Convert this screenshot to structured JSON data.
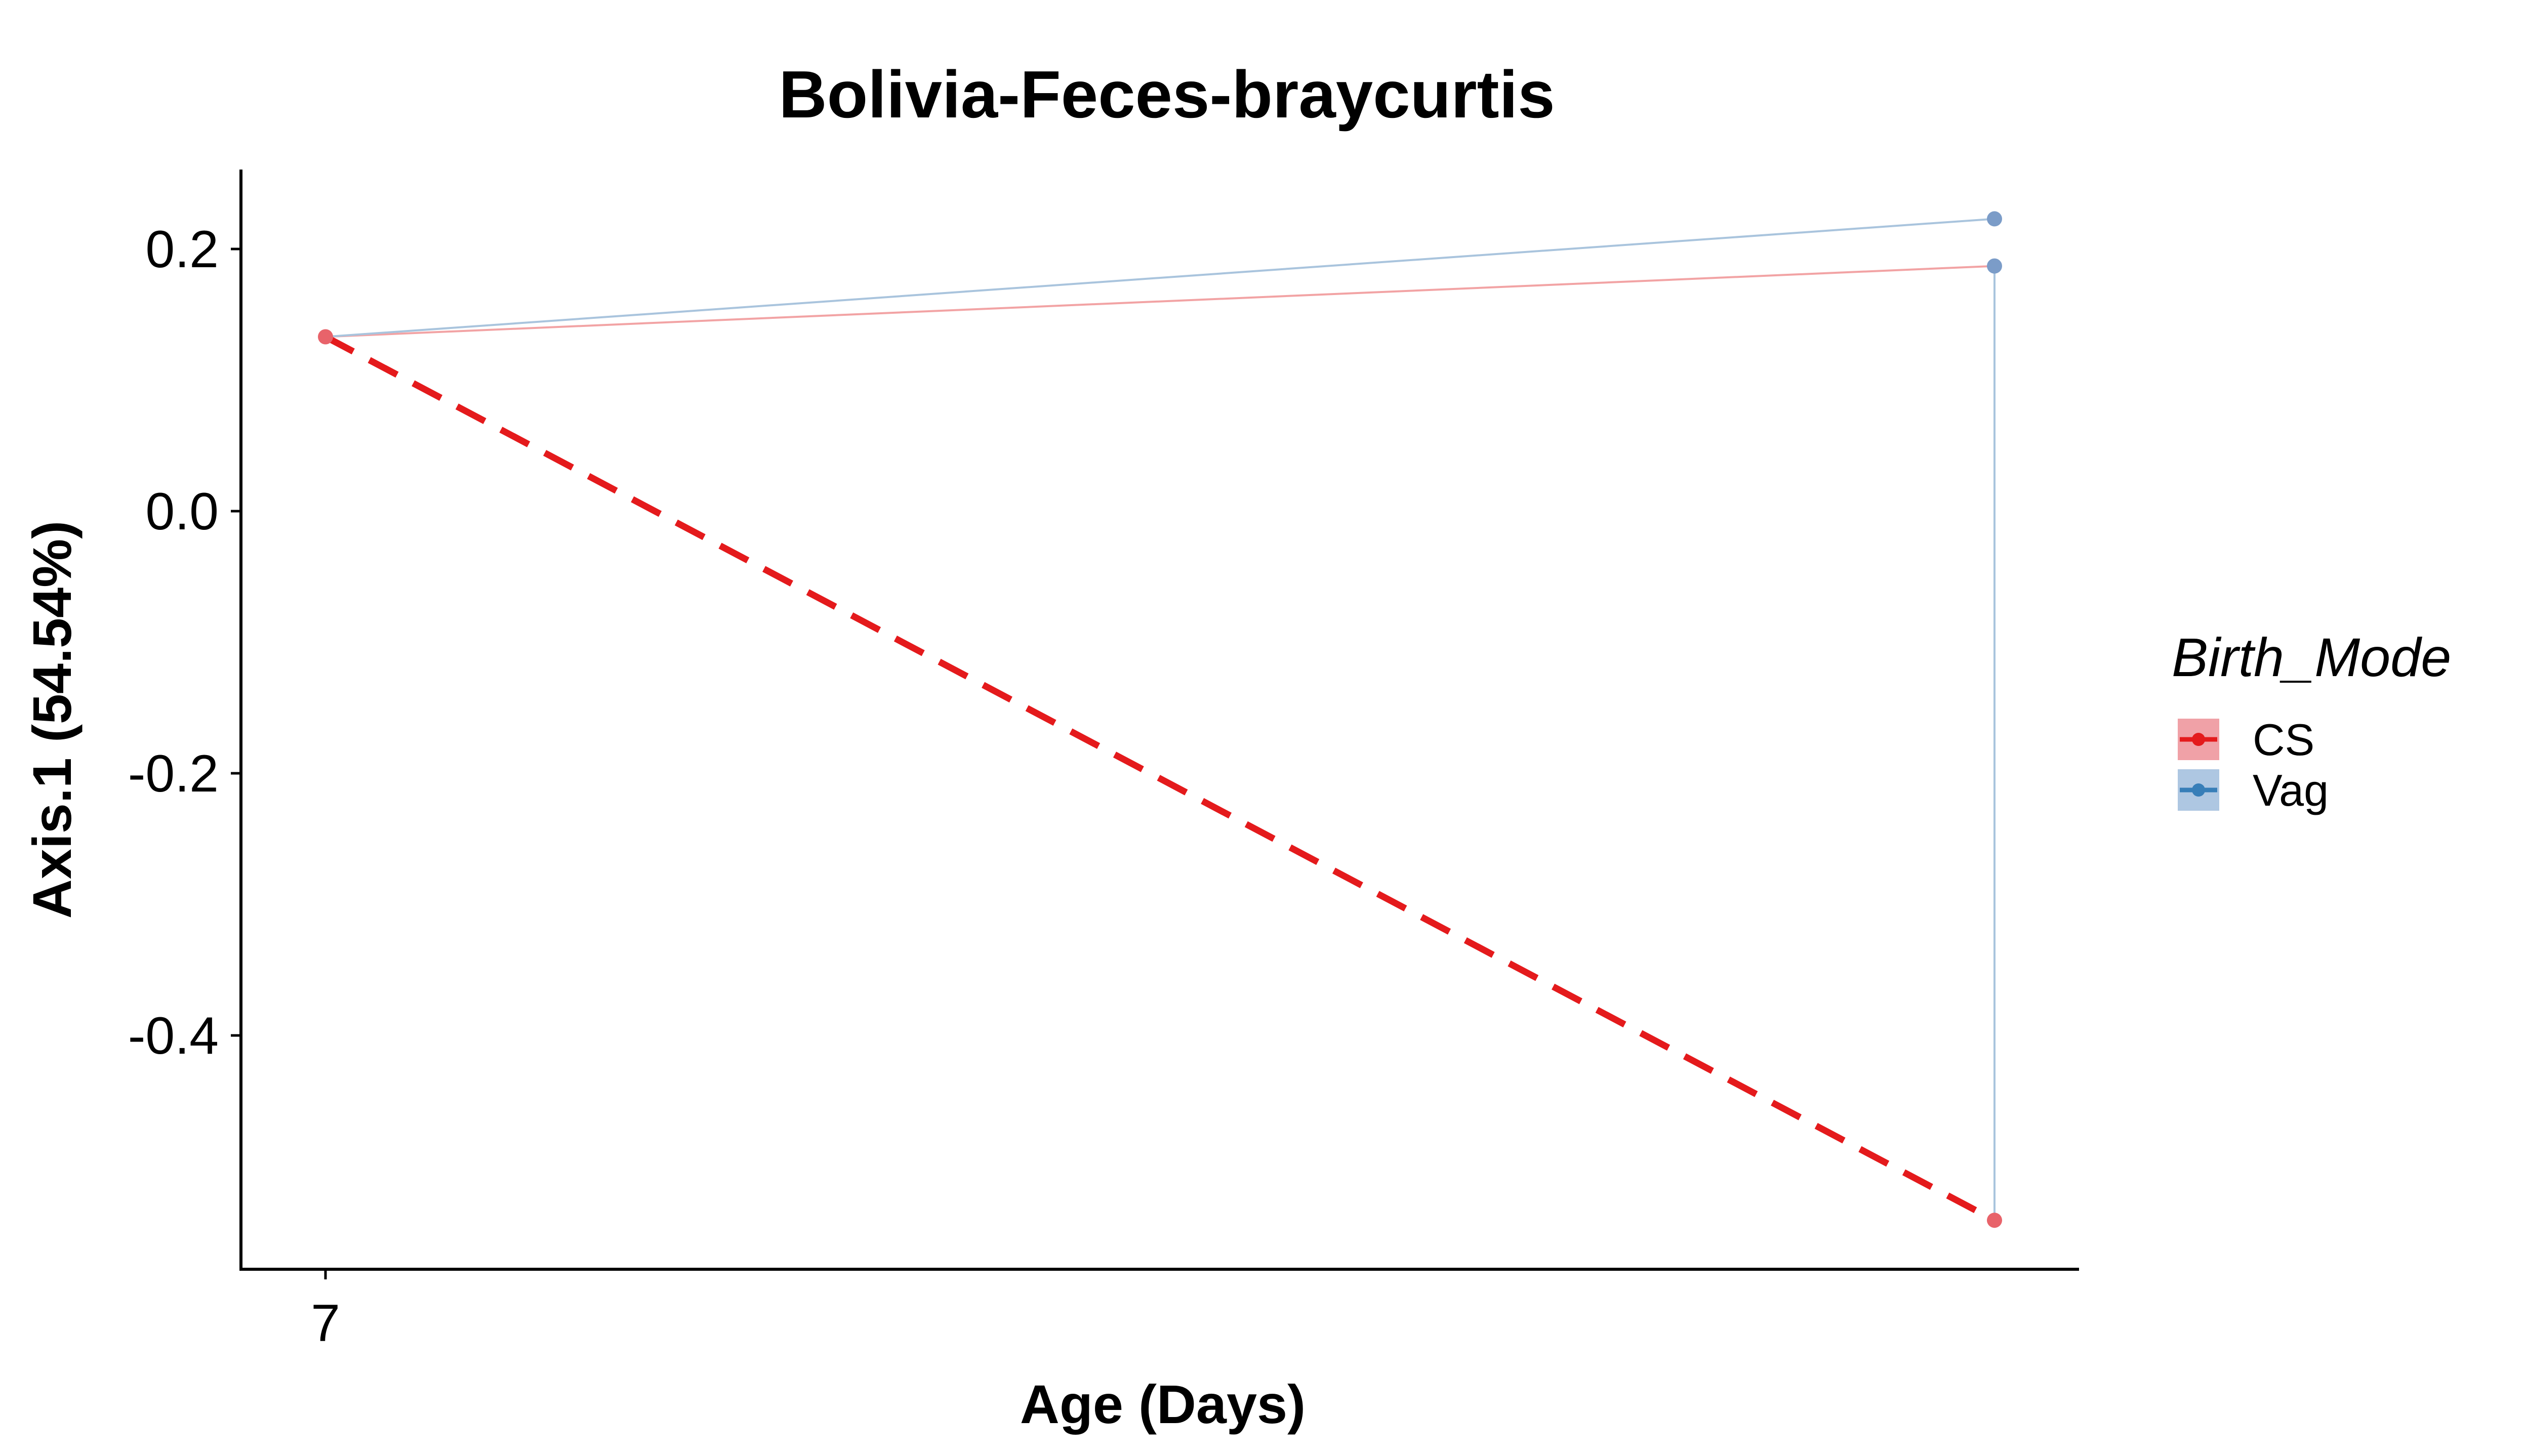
{
  "chart_data": {
    "type": "line",
    "title": "Bolivia-Feces-braycurtis",
    "xlabel": "Age (Days)",
    "ylabel": "Axis.1 (54.54%)",
    "x_tick_labels": [
      "7"
    ],
    "y_ticks": [
      0.2,
      0.0,
      -0.2,
      -0.4
    ],
    "y_tick_labels": [
      "0.2",
      "0.0",
      "-0.2",
      "-0.4"
    ],
    "ylim": [
      -0.58,
      0.26
    ],
    "grid": false,
    "legend": {
      "title": "Birth_Mode",
      "position": "right",
      "entries": [
        "CS",
        "Vag"
      ]
    },
    "series": [
      {
        "name": "CS",
        "color": "#E41A1C",
        "points": [
          {
            "x": "7",
            "y": 0.133
          },
          {
            "x": "later",
            "y": -0.541
          }
        ],
        "sample_lines": [
          [
            {
              "x": "7",
              "y": 0.133
            },
            {
              "x": "later",
              "y": 0.187
            }
          ]
        ],
        "mean_line": [
          {
            "x": "7",
            "y": 0.133
          },
          {
            "x": "later",
            "y": -0.541
          }
        ]
      },
      {
        "name": "Vag",
        "color": "#377EB8",
        "points": [
          {
            "x": "later",
            "y": 0.223
          },
          {
            "x": "later",
            "y": 0.187
          }
        ],
        "sample_lines": [
          [
            {
              "x": "7",
              "y": 0.133
            },
            {
              "x": "later",
              "y": 0.223
            }
          ],
          [
            {
              "x": "later",
              "y": 0.187
            },
            {
              "x": "later",
              "y": -0.541
            }
          ]
        ]
      }
    ]
  }
}
